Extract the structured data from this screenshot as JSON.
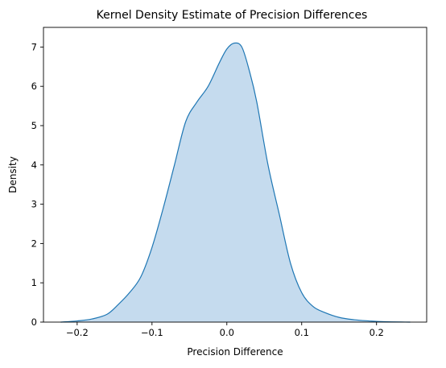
{
  "chart_data": {
    "type": "area",
    "title": "Kernel Density Estimate of Precision Differences",
    "xlabel": "Precision Difference",
    "ylabel": "Density",
    "xlim": [
      -0.245,
      0.267
    ],
    "ylim": [
      0,
      7.5
    ],
    "xticks": [
      -0.2,
      -0.1,
      0.0,
      0.1,
      0.2
    ],
    "xtick_labels": [
      "−0.2",
      "−0.1",
      "0.0",
      "0.1",
      "0.2"
    ],
    "yticks": [
      0,
      1,
      2,
      3,
      4,
      5,
      6,
      7
    ],
    "ytick_labels": [
      "0",
      "1",
      "2",
      "3",
      "4",
      "5",
      "6",
      "7"
    ],
    "grid": false,
    "line_color": "#1f77b4",
    "fill_color": "#c5dbee",
    "x": [
      -0.222,
      -0.2,
      -0.18,
      -0.16,
      -0.145,
      -0.13,
      -0.115,
      -0.1,
      -0.085,
      -0.07,
      -0.055,
      -0.04,
      -0.025,
      -0.01,
      0.0,
      0.01,
      0.02,
      0.03,
      0.04,
      0.055,
      0.07,
      0.085,
      0.1,
      0.115,
      0.13,
      0.15,
      0.17,
      0.19,
      0.21,
      0.245
    ],
    "y": [
      0.0,
      0.03,
      0.08,
      0.2,
      0.45,
      0.75,
      1.15,
      1.9,
      2.9,
      4.0,
      5.1,
      5.6,
      6.0,
      6.6,
      6.95,
      7.1,
      7.0,
      6.4,
      5.6,
      4.0,
      2.75,
      1.5,
      0.75,
      0.4,
      0.25,
      0.12,
      0.06,
      0.03,
      0.01,
      0.0
    ]
  }
}
